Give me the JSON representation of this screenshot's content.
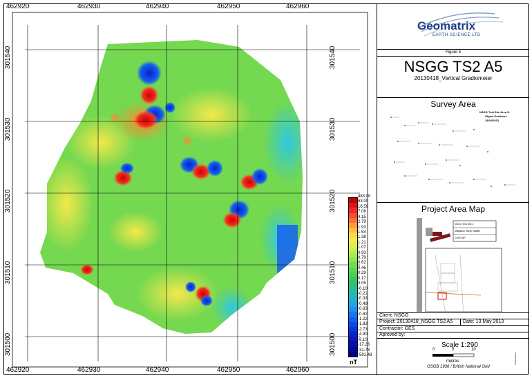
{
  "map": {
    "x_ticks": [
      "462920",
      "462930",
      "462940",
      "462950",
      "462960"
    ],
    "y_ticks": [
      "301540",
      "301530",
      "301520",
      "301510",
      "301500"
    ],
    "legend_values": [
      "483.00",
      "63.00",
      "16.59",
      "7.06",
      "4.15",
      "2.79",
      "1.93",
      "1.54",
      "1.38",
      "1.21",
      "1.07",
      "0.93",
      "0.79",
      "0.62",
      "0.46",
      "0.29",
      "0.17",
      "0.05",
      "-0.10",
      "-0.21",
      "-0.33",
      "-0.49",
      "-0.63",
      "-0.82",
      "-1.22",
      "-1.83",
      "-2.73",
      "-4.90",
      "-9.10",
      "-17.23",
      "-31.78",
      "-591.48"
    ],
    "legend_unit": "nT",
    "legend_colors": [
      "#c80000",
      "#dc1414",
      "#f02828",
      "#ff4a2a",
      "#ff7030",
      "#ff9a38",
      "#ffbc40",
      "#ffd848",
      "#f4ea50",
      "#dcef50",
      "#c4ef50",
      "#a8ea50",
      "#8ce450",
      "#70dc50",
      "#58d650",
      "#44d050",
      "#34c85a",
      "#2cc078",
      "#28bc96",
      "#24b8b4",
      "#20b0d2",
      "#1ca4e6",
      "#1890f0",
      "#1478f0",
      "#1060f0",
      "#0c48e8",
      "#0a34dc",
      "#0824cc",
      "#0618bc",
      "#040eaa",
      "#020898",
      "#000080"
    ]
  },
  "logo": {
    "name": "Geomatrix",
    "tagline": "EARTH SCIENCE LTD"
  },
  "title_block": {
    "figure": "Figure 5",
    "title": "NSGG TS2 A5",
    "subtitle": "20130418_Vertical Gradiometer"
  },
  "survey_area": {
    "heading": "Survey Area",
    "inset_title": "NSGG Test Site Area 5:",
    "inset_sub": "Object Positions",
    "inset_date": "18/04/2013"
  },
  "project_map": {
    "heading": "Project Area Map",
    "label1": "NSGG Test Site 2",
    "label2": "Mitigation Study Validity",
    "label3": "GGR/TAP"
  },
  "info": {
    "client": "Client: NSGG",
    "project": "Project: 20130418_NSGG TS2 A5",
    "date": "Date:  13 May 2013",
    "contractor": "Contractor: GES",
    "approved": "Aproved by:"
  },
  "scale": {
    "label": "Scale 1:290",
    "tick0": "0",
    "tick5": "5",
    "tick10": "10",
    "unit": "metres",
    "grid": "OSGB 1936 / British National Grid"
  }
}
